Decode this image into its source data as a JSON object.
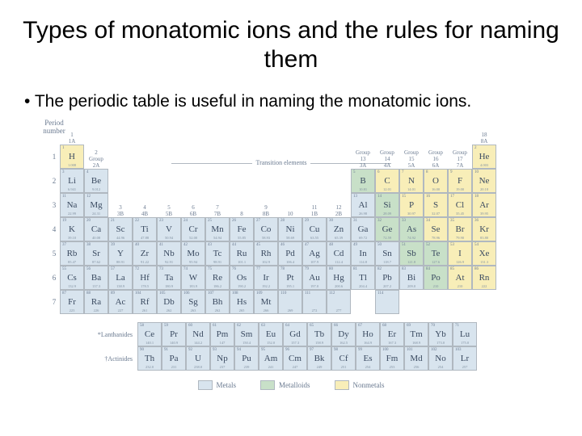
{
  "title": "Types of monatomic ions and the rules for naming them",
  "bullet": "The periodic table is useful in naming the monatomic ions.",
  "labels": {
    "period": "Period number",
    "transition": "Transition elements",
    "lanthanides": "*Lanthanides",
    "actinides": "†Actinides"
  },
  "groups_top": [
    {
      "n": "1",
      "r": "1A"
    },
    {
      "n": "18",
      "r": "8A"
    }
  ],
  "groups_2": {
    "n": "2",
    "r": "2A"
  },
  "groups_13_17": [
    {
      "n": "13",
      "r": "3A"
    },
    {
      "n": "14",
      "r": "4A"
    },
    {
      "n": "15",
      "r": "5A"
    },
    {
      "n": "16",
      "r": "6A"
    },
    {
      "n": "17",
      "r": "7A"
    }
  ],
  "groups_3_12": [
    {
      "n": "3",
      "r": "3B"
    },
    {
      "n": "4",
      "r": "4B"
    },
    {
      "n": "5",
      "r": "5B"
    },
    {
      "n": "6",
      "r": "6B"
    },
    {
      "n": "7",
      "r": "7B"
    },
    {
      "n": "8",
      "r": ""
    },
    {
      "n": "9",
      "r": "8B"
    },
    {
      "n": "10",
      "r": ""
    },
    {
      "n": "11",
      "r": "1B"
    },
    {
      "n": "12",
      "r": "2B"
    }
  ],
  "grouptext": "Group",
  "legend": {
    "metals": "Metals",
    "metalloids": "Metalloids",
    "nonmetals": "Nonmetals"
  },
  "colors": {
    "metal": "#d8e4ee",
    "metalloid": "#c8e0c8",
    "nonmetal": "#f8eeb8"
  },
  "rows": [
    [
      {
        "n": 1,
        "s": "H",
        "m": "1.008",
        "c": "nonmetal"
      },
      null,
      null,
      null,
      null,
      null,
      null,
      null,
      null,
      null,
      null,
      null,
      null,
      null,
      null,
      null,
      null,
      {
        "n": 2,
        "s": "He",
        "m": "4.003",
        "c": "nonmetal"
      }
    ],
    [
      {
        "n": 3,
        "s": "Li",
        "m": "6.941",
        "c": "metal"
      },
      {
        "n": 4,
        "s": "Be",
        "m": "9.012",
        "c": "metal"
      },
      null,
      null,
      null,
      null,
      null,
      null,
      null,
      null,
      null,
      null,
      {
        "n": 5,
        "s": "B",
        "m": "10.81",
        "c": "metalloid"
      },
      {
        "n": 6,
        "s": "C",
        "m": "12.01",
        "c": "nonmetal"
      },
      {
        "n": 7,
        "s": "N",
        "m": "14.01",
        "c": "nonmetal"
      },
      {
        "n": 8,
        "s": "O",
        "m": "16.00",
        "c": "nonmetal"
      },
      {
        "n": 9,
        "s": "F",
        "m": "19.00",
        "c": "nonmetal"
      },
      {
        "n": 10,
        "s": "Ne",
        "m": "20.18",
        "c": "nonmetal"
      }
    ],
    [
      {
        "n": 11,
        "s": "Na",
        "m": "22.99",
        "c": "metal"
      },
      {
        "n": 12,
        "s": "Mg",
        "m": "24.31",
        "c": "metal"
      },
      null,
      null,
      null,
      null,
      null,
      null,
      null,
      null,
      null,
      null,
      {
        "n": 13,
        "s": "Al",
        "m": "26.98",
        "c": "metal"
      },
      {
        "n": 14,
        "s": "Si",
        "m": "28.09",
        "c": "metalloid"
      },
      {
        "n": 15,
        "s": "P",
        "m": "30.97",
        "c": "nonmetal"
      },
      {
        "n": 16,
        "s": "S",
        "m": "32.07",
        "c": "nonmetal"
      },
      {
        "n": 17,
        "s": "Cl",
        "m": "35.45",
        "c": "nonmetal"
      },
      {
        "n": 18,
        "s": "Ar",
        "m": "39.95",
        "c": "nonmetal"
      }
    ],
    [
      {
        "n": 19,
        "s": "K",
        "m": "39.10",
        "c": "metal"
      },
      {
        "n": 20,
        "s": "Ca",
        "m": "40.08",
        "c": "metal"
      },
      {
        "n": 21,
        "s": "Sc",
        "m": "44.96",
        "c": "metal"
      },
      {
        "n": 22,
        "s": "Ti",
        "m": "47.88",
        "c": "metal"
      },
      {
        "n": 23,
        "s": "V",
        "m": "50.94",
        "c": "metal"
      },
      {
        "n": 24,
        "s": "Cr",
        "m": "52.00",
        "c": "metal"
      },
      {
        "n": 25,
        "s": "Mn",
        "m": "54.94",
        "c": "metal"
      },
      {
        "n": 26,
        "s": "Fe",
        "m": "55.85",
        "c": "metal"
      },
      {
        "n": 27,
        "s": "Co",
        "m": "58.93",
        "c": "metal"
      },
      {
        "n": 28,
        "s": "Ni",
        "m": "58.69",
        "c": "metal"
      },
      {
        "n": 29,
        "s": "Cu",
        "m": "63.55",
        "c": "metal"
      },
      {
        "n": 30,
        "s": "Zn",
        "m": "65.39",
        "c": "metal"
      },
      {
        "n": 31,
        "s": "Ga",
        "m": "69.72",
        "c": "metal"
      },
      {
        "n": 32,
        "s": "Ge",
        "m": "72.59",
        "c": "metalloid"
      },
      {
        "n": 33,
        "s": "As",
        "m": "74.92",
        "c": "metalloid"
      },
      {
        "n": 34,
        "s": "Se",
        "m": "78.96",
        "c": "nonmetal"
      },
      {
        "n": 35,
        "s": "Br",
        "m": "79.90",
        "c": "nonmetal"
      },
      {
        "n": 36,
        "s": "Kr",
        "m": "83.80",
        "c": "nonmetal"
      }
    ],
    [
      {
        "n": 37,
        "s": "Rb",
        "m": "85.47",
        "c": "metal"
      },
      {
        "n": 38,
        "s": "Sr",
        "m": "87.62",
        "c": "metal"
      },
      {
        "n": 39,
        "s": "Y",
        "m": "88.91",
        "c": "metal"
      },
      {
        "n": 40,
        "s": "Zr",
        "m": "91.22",
        "c": "metal"
      },
      {
        "n": 41,
        "s": "Nb",
        "m": "92.91",
        "c": "metal"
      },
      {
        "n": 42,
        "s": "Mo",
        "m": "95.94",
        "c": "metal"
      },
      {
        "n": 43,
        "s": "Tc",
        "m": "98.91",
        "c": "metal"
      },
      {
        "n": 44,
        "s": "Ru",
        "m": "101.1",
        "c": "metal"
      },
      {
        "n": 45,
        "s": "Rh",
        "m": "102.9",
        "c": "metal"
      },
      {
        "n": 46,
        "s": "Pd",
        "m": "106.4",
        "c": "metal"
      },
      {
        "n": 47,
        "s": "Ag",
        "m": "107.9",
        "c": "metal"
      },
      {
        "n": 48,
        "s": "Cd",
        "m": "112.4",
        "c": "metal"
      },
      {
        "n": 49,
        "s": "In",
        "m": "114.8",
        "c": "metal"
      },
      {
        "n": 50,
        "s": "Sn",
        "m": "118.7",
        "c": "metal"
      },
      {
        "n": 51,
        "s": "Sb",
        "m": "121.8",
        "c": "metalloid"
      },
      {
        "n": 52,
        "s": "Te",
        "m": "127.6",
        "c": "metalloid"
      },
      {
        "n": 53,
        "s": "I",
        "m": "126.9",
        "c": "nonmetal"
      },
      {
        "n": 54,
        "s": "Xe",
        "m": "131.3",
        "c": "nonmetal"
      }
    ],
    [
      {
        "n": 55,
        "s": "Cs",
        "m": "132.9",
        "c": "metal"
      },
      {
        "n": 56,
        "s": "Ba",
        "m": "137.3",
        "c": "metal"
      },
      {
        "n": 57,
        "s": "La",
        "m": "138.9",
        "c": "metal"
      },
      {
        "n": 72,
        "s": "Hf",
        "m": "178.5",
        "c": "metal"
      },
      {
        "n": 73,
        "s": "Ta",
        "m": "180.9",
        "c": "metal"
      },
      {
        "n": 74,
        "s": "W",
        "m": "183.9",
        "c": "metal"
      },
      {
        "n": 75,
        "s": "Re",
        "m": "186.2",
        "c": "metal"
      },
      {
        "n": 76,
        "s": "Os",
        "m": "190.2",
        "c": "metal"
      },
      {
        "n": 77,
        "s": "Ir",
        "m": "192.2",
        "c": "metal"
      },
      {
        "n": 78,
        "s": "Pt",
        "m": "195.1",
        "c": "metal"
      },
      {
        "n": 79,
        "s": "Au",
        "m": "197.0",
        "c": "metal"
      },
      {
        "n": 80,
        "s": "Hg",
        "m": "200.6",
        "c": "metal"
      },
      {
        "n": 81,
        "s": "Tl",
        "m": "204.4",
        "c": "metal"
      },
      {
        "n": 82,
        "s": "Pb",
        "m": "207.2",
        "c": "metal"
      },
      {
        "n": 83,
        "s": "Bi",
        "m": "209.0",
        "c": "metal"
      },
      {
        "n": 84,
        "s": "Po",
        "m": "210",
        "c": "metalloid"
      },
      {
        "n": 85,
        "s": "At",
        "m": "210",
        "c": "nonmetal"
      },
      {
        "n": 86,
        "s": "Rn",
        "m": "222",
        "c": "nonmetal"
      }
    ],
    [
      {
        "n": 87,
        "s": "Fr",
        "m": "223",
        "c": "metal"
      },
      {
        "n": 88,
        "s": "Ra",
        "m": "226",
        "c": "metal"
      },
      {
        "n": 89,
        "s": "Ac",
        "m": "227",
        "c": "metal"
      },
      {
        "n": 104,
        "s": "Rf",
        "m": "261",
        "c": "metal"
      },
      {
        "n": 105,
        "s": "Db",
        "m": "262",
        "c": "metal"
      },
      {
        "n": 106,
        "s": "Sg",
        "m": "263",
        "c": "metal"
      },
      {
        "n": 107,
        "s": "Bh",
        "m": "262",
        "c": "metal"
      },
      {
        "n": 108,
        "s": "Hs",
        "m": "265",
        "c": "metal"
      },
      {
        "n": 109,
        "s": "Mt",
        "m": "266",
        "c": "metal"
      },
      {
        "n": 110,
        "s": "",
        "m": "269",
        "c": "metal"
      },
      {
        "n": 111,
        "s": "",
        "m": "272",
        "c": "metal"
      },
      {
        "n": 112,
        "s": "",
        "m": "277",
        "c": "metal"
      },
      null,
      {
        "n": 114,
        "s": "",
        "m": "",
        "c": "metal"
      },
      null,
      null,
      null,
      null
    ]
  ],
  "lanthanides": [
    {
      "n": 58,
      "s": "Ce",
      "m": "140.1"
    },
    {
      "n": 59,
      "s": "Pr",
      "m": "140.9"
    },
    {
      "n": 60,
      "s": "Nd",
      "m": "144.2"
    },
    {
      "n": 61,
      "s": "Pm",
      "m": "147"
    },
    {
      "n": 62,
      "s": "Sm",
      "m": "150.4"
    },
    {
      "n": 63,
      "s": "Eu",
      "m": "152.0"
    },
    {
      "n": 64,
      "s": "Gd",
      "m": "157.3"
    },
    {
      "n": 65,
      "s": "Tb",
      "m": "158.9"
    },
    {
      "n": 66,
      "s": "Dy",
      "m": "162.5"
    },
    {
      "n": 67,
      "s": "Ho",
      "m": "164.9"
    },
    {
      "n": 68,
      "s": "Er",
      "m": "167.3"
    },
    {
      "n": 69,
      "s": "Tm",
      "m": "168.9"
    },
    {
      "n": 70,
      "s": "Yb",
      "m": "173.0"
    },
    {
      "n": 71,
      "s": "Lu",
      "m": "175.0"
    }
  ],
  "actinides": [
    {
      "n": 90,
      "s": "Th",
      "m": "232.0"
    },
    {
      "n": 91,
      "s": "Pa",
      "m": "231"
    },
    {
      "n": 92,
      "s": "U",
      "m": "238.0"
    },
    {
      "n": 93,
      "s": "Np",
      "m": "237"
    },
    {
      "n": 94,
      "s": "Pu",
      "m": "239"
    },
    {
      "n": 95,
      "s": "Am",
      "m": "241"
    },
    {
      "n": 96,
      "s": "Cm",
      "m": "247"
    },
    {
      "n": 97,
      "s": "Bk",
      "m": "249"
    },
    {
      "n": 98,
      "s": "Cf",
      "m": "251"
    },
    {
      "n": 99,
      "s": "Es",
      "m": "254"
    },
    {
      "n": 100,
      "s": "Fm",
      "m": "253"
    },
    {
      "n": 101,
      "s": "Md",
      "m": "256"
    },
    {
      "n": 102,
      "s": "No",
      "m": "254"
    },
    {
      "n": 103,
      "s": "Lr",
      "m": "257"
    }
  ]
}
